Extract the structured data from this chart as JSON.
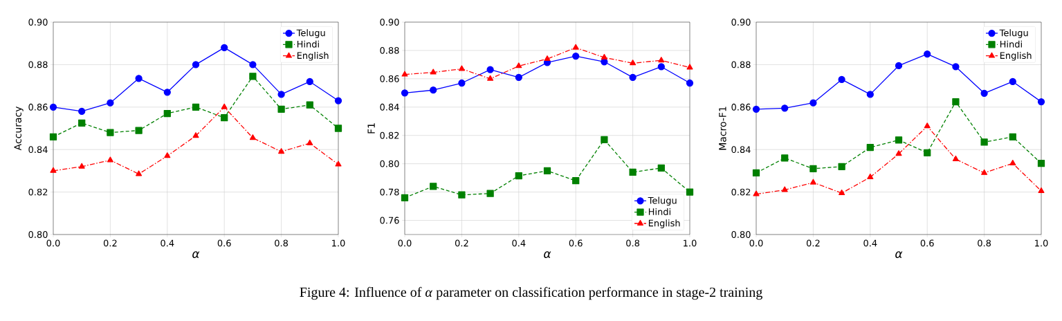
{
  "chart_data": [
    {
      "type": "line",
      "ylabel": "Accuracy",
      "xlabel": "α",
      "xlim": [
        0,
        1
      ],
      "ylim": [
        0.8,
        0.9
      ],
      "x": [
        0.0,
        0.1,
        0.2,
        0.3,
        0.4,
        0.5,
        0.6,
        0.7,
        0.8,
        0.9,
        1.0
      ],
      "xticks": [
        {
          "value": 0,
          "label": "0.0"
        },
        {
          "value": 0.2,
          "label": "0.2"
        },
        {
          "value": 0.4,
          "label": "0.4"
        },
        {
          "value": 0.6,
          "label": "0.6"
        },
        {
          "value": 0.8,
          "label": "0.8"
        },
        {
          "value": 1,
          "label": "1.0"
        }
      ],
      "yticks": [
        {
          "value": 0.8,
          "label": "0.80"
        },
        {
          "value": 0.82,
          "label": "0.82"
        },
        {
          "value": 0.84,
          "label": "0.84"
        },
        {
          "value": 0.86,
          "label": "0.86"
        },
        {
          "value": 0.88,
          "label": "0.88"
        },
        {
          "value": 0.9,
          "label": "0.90"
        }
      ],
      "grid": true,
      "legend": "top right",
      "series": [
        {
          "name": "Telugu",
          "color": "#0000ff",
          "marker": "circle",
          "line_style": "solid",
          "values": [
            0.86,
            0.858,
            0.862,
            0.8735,
            0.867,
            0.88,
            0.888,
            0.88,
            0.866,
            0.872,
            0.863
          ]
        },
        {
          "name": "Hindi",
          "color": "#008000",
          "marker": "square",
          "line_style": "dashed",
          "values": [
            0.846,
            0.8525,
            0.848,
            0.849,
            0.857,
            0.86,
            0.855,
            0.8745,
            0.859,
            0.861,
            0.85
          ]
        },
        {
          "name": "English",
          "color": "#ff0000",
          "marker": "triangle",
          "line_style": "dashdot",
          "values": [
            0.83,
            0.832,
            0.835,
            0.8285,
            0.837,
            0.8465,
            0.86,
            0.8455,
            0.839,
            0.843,
            0.833
          ]
        }
      ]
    },
    {
      "type": "line",
      "ylabel": "F1",
      "xlabel": "α",
      "xlim": [
        0,
        1
      ],
      "ylim": [
        0.75,
        0.9
      ],
      "x": [
        0.0,
        0.1,
        0.2,
        0.3,
        0.4,
        0.5,
        0.6,
        0.7,
        0.8,
        0.9,
        1.0
      ],
      "xticks": [
        {
          "value": 0,
          "label": "0.0"
        },
        {
          "value": 0.2,
          "label": "0.2"
        },
        {
          "value": 0.4,
          "label": "0.4"
        },
        {
          "value": 0.6,
          "label": "0.6"
        },
        {
          "value": 0.8,
          "label": "0.8"
        },
        {
          "value": 1,
          "label": "1.0"
        }
      ],
      "yticks": [
        {
          "value": 0.76,
          "label": "0.76"
        },
        {
          "value": 0.78,
          "label": "0.78"
        },
        {
          "value": 0.8,
          "label": "0.80"
        },
        {
          "value": 0.82,
          "label": "0.82"
        },
        {
          "value": 0.84,
          "label": "0.84"
        },
        {
          "value": 0.86,
          "label": "0.86"
        },
        {
          "value": 0.88,
          "label": "0.88"
        },
        {
          "value": 0.9,
          "label": "0.90"
        }
      ],
      "grid": true,
      "legend": "bottom right",
      "annotations": [
        "Figure 4: Influence of *α* parameter on classification performance in stage-2 training"
      ],
      "series": [
        {
          "name": "Telugu",
          "color": "#0000ff",
          "marker": "circle",
          "line_style": "solid",
          "values": [
            0.85,
            0.852,
            0.857,
            0.8665,
            0.861,
            0.8715,
            0.876,
            0.872,
            0.861,
            0.8685,
            0.857
          ]
        },
        {
          "name": "Hindi",
          "color": "#008000",
          "marker": "square",
          "line_style": "dashed",
          "values": [
            0.776,
            0.784,
            0.778,
            0.779,
            0.7915,
            0.795,
            0.788,
            0.817,
            0.794,
            0.797,
            0.78
          ]
        },
        {
          "name": "English",
          "color": "#ff0000",
          "marker": "triangle",
          "line_style": "dashdot",
          "values": [
            0.863,
            0.8645,
            0.867,
            0.86,
            0.869,
            0.874,
            0.882,
            0.875,
            0.871,
            0.873,
            0.868
          ]
        }
      ]
    },
    {
      "type": "line",
      "ylabel": "Macro-F1",
      "xlabel": "α",
      "xlim": [
        0,
        1
      ],
      "ylim": [
        0.8,
        0.9
      ],
      "x": [
        0.0,
        0.1,
        0.2,
        0.3,
        0.4,
        0.5,
        0.6,
        0.7,
        0.8,
        0.9,
        1.0
      ],
      "xticks": [
        {
          "value": 0,
          "label": "0.0"
        },
        {
          "value": 0.2,
          "label": "0.2"
        },
        {
          "value": 0.4,
          "label": "0.4"
        },
        {
          "value": 0.6,
          "label": "0.6"
        },
        {
          "value": 0.8,
          "label": "0.8"
        },
        {
          "value": 1,
          "label": "1.0"
        }
      ],
      "yticks": [
        {
          "value": 0.8,
          "label": "0.80"
        },
        {
          "value": 0.82,
          "label": "0.82"
        },
        {
          "value": 0.84,
          "label": "0.84"
        },
        {
          "value": 0.86,
          "label": "0.86"
        },
        {
          "value": 0.88,
          "label": "0.88"
        },
        {
          "value": 0.9,
          "label": "0.90"
        }
      ],
      "grid": true,
      "legend": "top right",
      "series": [
        {
          "name": "Telugu",
          "color": "#0000ff",
          "marker": "circle",
          "line_style": "solid",
          "values": [
            0.859,
            0.8595,
            0.862,
            0.873,
            0.866,
            0.8795,
            0.885,
            0.879,
            0.8665,
            0.872,
            0.8625
          ]
        },
        {
          "name": "Hindi",
          "color": "#008000",
          "marker": "square",
          "line_style": "dashed",
          "values": [
            0.829,
            0.836,
            0.831,
            0.832,
            0.841,
            0.8445,
            0.8385,
            0.8625,
            0.8435,
            0.846,
            0.8335
          ]
        },
        {
          "name": "English",
          "color": "#ff0000",
          "marker": "triangle",
          "line_style": "dashdot",
          "values": [
            0.819,
            0.821,
            0.8245,
            0.8195,
            0.827,
            0.838,
            0.851,
            0.8355,
            0.829,
            0.8335,
            0.8205
          ]
        }
      ]
    }
  ]
}
